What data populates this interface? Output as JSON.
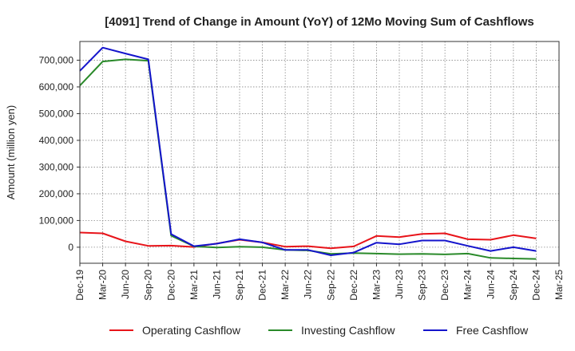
{
  "chart_data": {
    "type": "line",
    "title": "[4091]  Trend of Change in Amount (YoY) of 12Mo Moving Sum of Cashflows",
    "xlabel": "",
    "ylabel": "Amount (million yen)",
    "ylim": [
      -60000,
      770000
    ],
    "yticks": [
      0,
      100000,
      200000,
      300000,
      400000,
      500000,
      600000,
      700000
    ],
    "ytick_labels": [
      "0",
      "100,000",
      "200,000",
      "300,000",
      "400,000",
      "500,000",
      "600,000",
      "700,000"
    ],
    "grid": true,
    "legend_position": "bottom",
    "x_labels": [
      "Dec-19",
      "Mar-20",
      "Jun-20",
      "Sep-20",
      "Dec-20",
      "Mar-21",
      "Jun-21",
      "Sep-21",
      "Dec-21",
      "Mar-22",
      "Jun-22",
      "Sep-22",
      "Dec-22",
      "Mar-23",
      "Jun-23",
      "Sep-23",
      "Dec-23",
      "Mar-24",
      "Jun-24",
      "Sep-24",
      "Dec-24",
      "Mar-25"
    ],
    "series": [
      {
        "name": "Operating Cashflow",
        "color": "#e8141a",
        "values": [
          55000,
          52000,
          22000,
          5000,
          6000,
          1000,
          14000,
          28000,
          18000,
          2000,
          4000,
          -4000,
          3000,
          42000,
          38000,
          50000,
          52000,
          30000,
          28000,
          45000,
          33000,
          null
        ]
      },
      {
        "name": "Investing Cashflow",
        "color": "#2a8a2a",
        "values": [
          605000,
          695000,
          703000,
          698000,
          43000,
          3000,
          -1000,
          2000,
          0,
          -10000,
          -12000,
          -25000,
          -22000,
          -24000,
          -26000,
          -25000,
          -27000,
          -24000,
          -40000,
          -42000,
          -44000,
          null
        ]
      },
      {
        "name": "Free Cashflow",
        "color": "#1414cc",
        "values": [
          660000,
          747000,
          725000,
          703000,
          49000,
          4000,
          13000,
          30000,
          18000,
          -10000,
          -10000,
          -30000,
          -20000,
          17000,
          11000,
          25000,
          25000,
          5000,
          -14000,
          0,
          -14000,
          null
        ]
      }
    ]
  }
}
